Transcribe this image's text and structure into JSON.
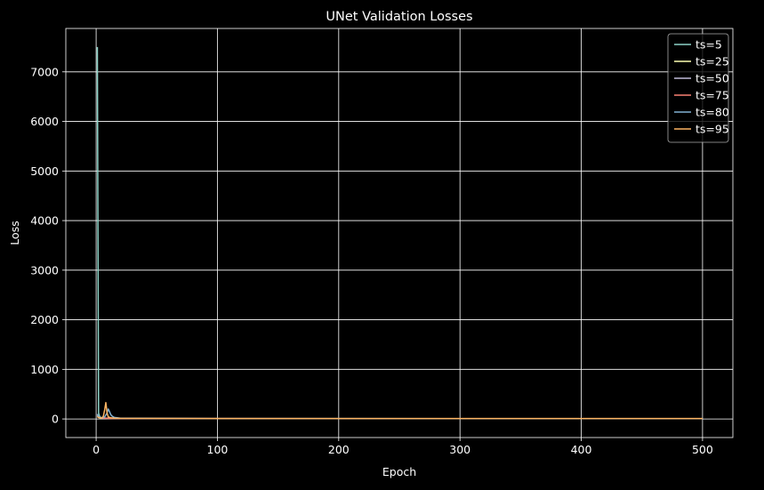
{
  "chart_data": {
    "type": "line",
    "title": "UNet Validation Losses",
    "xlabel": "Epoch",
    "ylabel": "Loss",
    "xlim": [
      -25,
      525
    ],
    "ylim": [
      -375,
      7875
    ],
    "xticks": [
      0,
      100,
      200,
      300,
      400,
      500
    ],
    "yticks": [
      0,
      1000,
      2000,
      3000,
      4000,
      5000,
      6000,
      7000
    ],
    "grid": true,
    "legend_position": "top-right",
    "series": [
      {
        "name": "ts=5",
        "color": "#8dd3c7",
        "x": [
          1,
          2,
          3,
          4,
          5,
          6,
          8,
          10,
          15,
          20,
          50,
          100,
          200,
          300,
          400,
          500
        ],
        "y": [
          7500,
          120,
          40,
          30,
          25,
          20,
          18,
          15,
          12,
          10,
          8,
          7,
          6,
          6,
          5,
          5
        ]
      },
      {
        "name": "ts=25",
        "color": "#feffb3",
        "x": [
          1,
          2,
          3,
          5,
          8,
          10,
          15,
          20,
          50,
          100,
          200,
          300,
          400,
          500
        ],
        "y": [
          60,
          30,
          20,
          15,
          12,
          10,
          9,
          8,
          7,
          6,
          5,
          5,
          5,
          5
        ]
      },
      {
        "name": "ts=50",
        "color": "#bfbbd9",
        "x": [
          1,
          2,
          3,
          5,
          8,
          10,
          15,
          20,
          50,
          100,
          200,
          300,
          400,
          500
        ],
        "y": [
          80,
          40,
          25,
          18,
          14,
          12,
          10,
          9,
          8,
          7,
          6,
          6,
          5,
          5
        ]
      },
      {
        "name": "ts=75",
        "color": "#fa8174",
        "x": [
          1,
          2,
          3,
          5,
          8,
          10,
          15,
          20,
          50,
          100,
          200,
          300,
          400,
          500
        ],
        "y": [
          90,
          45,
          30,
          20,
          15,
          13,
          11,
          10,
          9,
          8,
          7,
          6,
          6,
          6
        ]
      },
      {
        "name": "ts=80",
        "color": "#81b1d2",
        "x": [
          1,
          2,
          3,
          5,
          7,
          9,
          10,
          11,
          12,
          13,
          15,
          20,
          50,
          100,
          200,
          300,
          400,
          500
        ],
        "y": [
          100,
          50,
          30,
          25,
          40,
          120,
          200,
          150,
          90,
          60,
          30,
          15,
          10,
          9,
          8,
          7,
          7,
          7
        ]
      },
      {
        "name": "ts=95",
        "color": "#fdb462",
        "x": [
          1,
          2,
          3,
          4,
          5,
          6,
          7,
          8,
          9,
          10,
          12,
          15,
          20,
          50,
          100,
          200,
          300,
          400,
          500
        ],
        "y": [
          40,
          30,
          25,
          20,
          20,
          60,
          180,
          330,
          120,
          40,
          25,
          15,
          12,
          10,
          9,
          8,
          8,
          8,
          8
        ]
      }
    ]
  }
}
